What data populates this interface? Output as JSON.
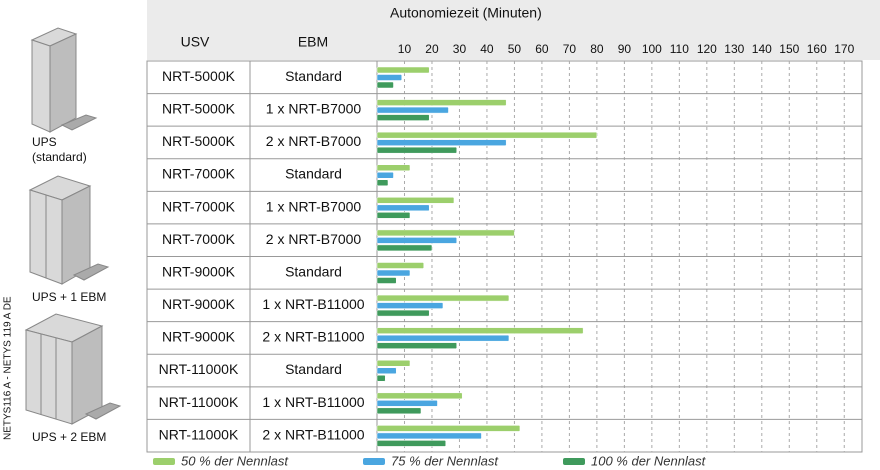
{
  "chart_data": {
    "type": "bar",
    "orientation": "horizontal",
    "x_label": "Autonomiezeit (Minuten)",
    "column_headers": [
      "USV",
      "EBM"
    ],
    "categories": [
      [
        "NRT-5000K",
        "Standard"
      ],
      [
        "NRT-5000K",
        "1 x NRT-B7000"
      ],
      [
        "NRT-5000K",
        "2 x NRT-B7000"
      ],
      [
        "NRT-7000K",
        "Standard"
      ],
      [
        "NRT-7000K",
        "1 x NRT-B7000"
      ],
      [
        "NRT-7000K",
        "2 x NRT-B7000"
      ],
      [
        "NRT-9000K",
        "Standard"
      ],
      [
        "NRT-9000K",
        "1 x NRT-B11000"
      ],
      [
        "NRT-9000K",
        "2 x NRT-B11000"
      ],
      [
        "NRT-11000K",
        "Standard"
      ],
      [
        "NRT-11000K",
        "1 x NRT-B11000"
      ],
      [
        "NRT-11000K",
        "2 x NRT-B11000"
      ]
    ],
    "series": [
      {
        "name": "50 % der Nennlast",
        "color": "#9ccf6c",
        "values": [
          19,
          47,
          80,
          12,
          28,
          50,
          17,
          48,
          75,
          12,
          31,
          52
        ]
      },
      {
        "name": "75 % der Nennlast",
        "color": "#4aa6e0",
        "values": [
          9,
          26,
          47,
          6,
          19,
          29,
          12,
          24,
          48,
          7,
          22,
          38
        ]
      },
      {
        "name": "100 % der Nennlast",
        "color": "#3f9a5c",
        "values": [
          6,
          19,
          29,
          4,
          12,
          20,
          7,
          19,
          29,
          3,
          16,
          25
        ]
      }
    ],
    "xlim": [
      0,
      175
    ],
    "xticks": [
      10,
      20,
      30,
      40,
      50,
      60,
      70,
      80,
      90,
      100,
      110,
      120,
      130,
      140,
      150,
      160,
      170
    ],
    "grid": true
  },
  "side_labels": [
    [
      "UPS",
      "(standard)"
    ],
    [
      "UPS + 1 EBM"
    ],
    [
      "UPS + 2 EBM"
    ]
  ],
  "doc_id": "NETYS116 A - NETYS 119 A DE"
}
